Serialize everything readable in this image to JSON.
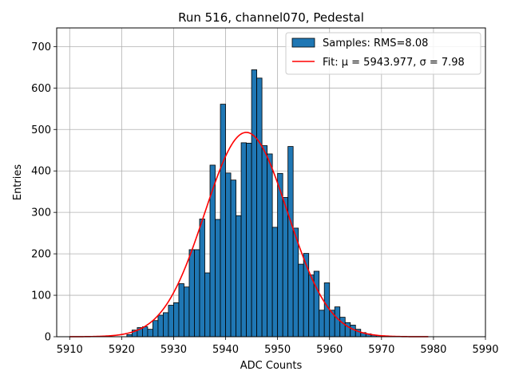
{
  "chart_data": {
    "type": "bar",
    "title": "Run 516, channel070, Pedestal",
    "xlabel": "ADC Counts",
    "ylabel": "Entries",
    "xlim": [
      5907.5,
      5990
    ],
    "ylim": [
      0,
      745
    ],
    "xticks": [
      5910,
      5920,
      5930,
      5940,
      5950,
      5960,
      5970,
      5980,
      5990
    ],
    "yticks": [
      0,
      100,
      200,
      300,
      400,
      500,
      600,
      700
    ],
    "grid": true,
    "legend_position": "top-right",
    "bin_width": 1,
    "bins": {
      "name": "Samples: RMS=8.08",
      "color": "#1f77b4",
      "x": [
        5921,
        5922,
        5923,
        5924,
        5925,
        5926,
        5927,
        5928,
        5929,
        5930,
        5931,
        5932,
        5933,
        5934,
        5935,
        5936,
        5937,
        5938,
        5939,
        5940,
        5941,
        5942,
        5943,
        5944,
        5945,
        5946,
        5947,
        5948,
        5949,
        5950,
        5951,
        5952,
        5953,
        5954,
        5955,
        5956,
        5957,
        5958,
        5959,
        5960,
        5961,
        5962,
        5963,
        5964,
        5965,
        5966,
        5967,
        5968,
        5969,
        5970
      ],
      "values": [
        5,
        16,
        22,
        24,
        18,
        39,
        52,
        58,
        76,
        82,
        128,
        120,
        210,
        210,
        284,
        154,
        414,
        283,
        561,
        395,
        378,
        292,
        468,
        467,
        644,
        624,
        461,
        441,
        264,
        394,
        336,
        459,
        262,
        175,
        201,
        149,
        158,
        64,
        130,
        64,
        72,
        47,
        34,
        28,
        18,
        10,
        7,
        4,
        3,
        2
      ]
    },
    "fit": {
      "name": "Fit: μ = 5943.977, σ = 7.98",
      "color": "#ff0000",
      "mu": 5943.977,
      "sigma": 7.98,
      "amplitude": 493,
      "x_range": [
        5910,
        5979
      ]
    }
  }
}
